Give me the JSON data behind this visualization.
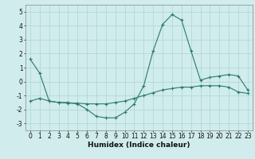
{
  "x": [
    0,
    1,
    2,
    3,
    4,
    5,
    6,
    7,
    8,
    9,
    10,
    11,
    12,
    13,
    14,
    15,
    16,
    17,
    18,
    19,
    20,
    21,
    22,
    23
  ],
  "line1": [
    1.6,
    0.6,
    -1.4,
    -1.5,
    -1.5,
    -1.6,
    -2.0,
    -2.5,
    -2.6,
    -2.6,
    -2.2,
    -1.6,
    -0.3,
    2.2,
    4.1,
    4.8,
    4.4,
    2.2,
    0.1,
    0.3,
    0.4,
    0.5,
    0.4,
    -0.6
  ],
  "line2": [
    -1.4,
    -1.2,
    -1.4,
    -1.5,
    -1.55,
    -1.55,
    -1.6,
    -1.6,
    -1.6,
    -1.5,
    -1.4,
    -1.2,
    -1.0,
    -0.8,
    -0.6,
    -0.5,
    -0.4,
    -0.4,
    -0.3,
    -0.3,
    -0.3,
    -0.4,
    -0.75,
    -0.85
  ],
  "line_color": "#2a7a6a",
  "bg_color": "#d0ecec",
  "grid_color": "#aed4d4",
  "xlabel": "Humidex (Indice chaleur)",
  "ylim": [
    -3.5,
    5.5
  ],
  "xlim": [
    -0.5,
    23.5
  ],
  "yticks": [
    -3,
    -2,
    -1,
    0,
    1,
    2,
    3,
    4,
    5
  ],
  "xticks": [
    0,
    1,
    2,
    3,
    4,
    5,
    6,
    7,
    8,
    9,
    10,
    11,
    12,
    13,
    14,
    15,
    16,
    17,
    18,
    19,
    20,
    21,
    22,
    23
  ],
  "tick_fontsize": 5.5,
  "xlabel_fontsize": 6.5,
  "figsize": [
    3.2,
    2.0
  ],
  "dpi": 100
}
